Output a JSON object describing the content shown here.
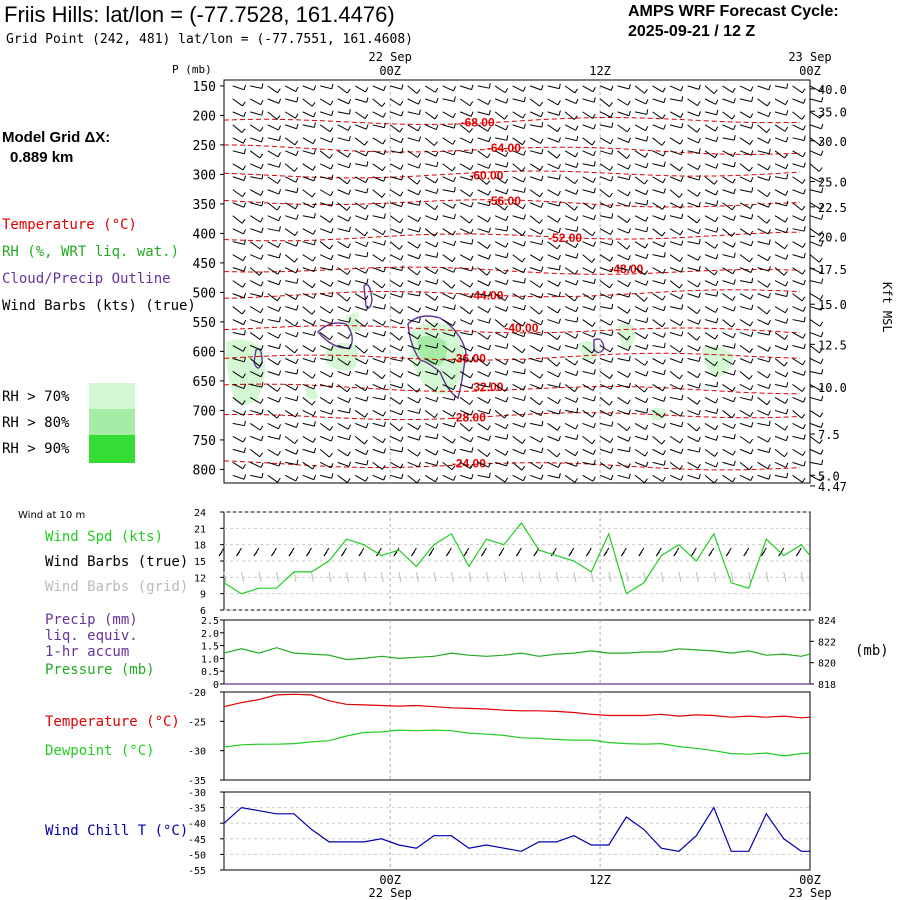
{
  "header": {
    "title": "Friis Hills:  lat/lon = (-77.7528, 161.4476)",
    "subtitle": "Grid Point (242, 481) lat/lon = (-77.7551, 161.4608)",
    "cycle_line1": "AMPS WRF Forecast Cycle:",
    "cycle_line2": "2025-09-21 / 12  Z",
    "grid_label": "Model Grid ΔX:",
    "grid_value": "0.889 km"
  },
  "colors": {
    "temperature": "#e00000",
    "rh": "#22aa22",
    "cloud": "#663399",
    "wind_spd": "#22cc22",
    "wind_grid": "#bbbbbb",
    "precip": "#663399",
    "pressure": "#22aa22",
    "dewpoint": "#22cc22",
    "windchill": "#0000aa",
    "rh70": "#d4f7d4",
    "rh80": "#a6eba6",
    "rh90": "#33dd33"
  },
  "legends": {
    "temperature": "Temperature (°C)",
    "rh": "RH (%, WRT liq. wat.)",
    "cloud": "Cloud/Precip Outline",
    "wind_barbs": "Wind Barbs (kts) (true)",
    "rh70": "RH > 70%",
    "rh80": "RH > 80%",
    "rh90": "RH > 90%",
    "wind_10m": "Wind at 10 m",
    "wind_spd": "Wind Spd (kts)",
    "wind_barbs_true": "Wind Barbs (true)",
    "wind_barbs_grid": "Wind Barbs (grid)",
    "precip1": "Precip (mm)",
    "precip2": "liq. equiv.",
    "precip3": "1-hr accum",
    "pressure": "Pressure (mb)",
    "pressure_unit": "(mb)",
    "temperature2": "Temperature (°C)",
    "dewpoint": "Dewpoint (°C)",
    "windchill": "Wind Chill T (°C)",
    "p_axis": "P (mb)",
    "kft_axis": "Kft MSL"
  },
  "time_axis": {
    "top_labels": [
      {
        "time": "22 Sep",
        "hour": "00Z",
        "t": 12
      },
      {
        "time": "",
        "hour": "12Z",
        "t": 24
      },
      {
        "time": "23 Sep",
        "hour": "00Z",
        "t": 36
      }
    ],
    "bottom_labels": [
      {
        "hour": "00Z",
        "date": "22 Sep",
        "t": 12
      },
      {
        "hour": "12Z",
        "date": "",
        "t": 24
      },
      {
        "hour": "00Z",
        "date": "23 Sep",
        "t": 36
      }
    ],
    "range": [
      2.5,
      36
    ]
  },
  "chart_data": [
    {
      "type": "contour",
      "title": "Vertical profile time-height section",
      "ylabel": "P (mb)",
      "y2label": "Kft MSL",
      "pressure_ticks": [
        "150",
        "200",
        "250",
        "300",
        "350",
        "400",
        "450",
        "500",
        "550",
        "600",
        "650",
        "700",
        "750",
        "800"
      ],
      "kft_ticks": [
        {
          "label": "40.0",
          "p": 155
        },
        {
          "label": "35.0",
          "p": 193
        },
        {
          "label": "30.0",
          "p": 243
        },
        {
          "label": "25.0",
          "p": 312
        },
        {
          "label": "22.5",
          "p": 355
        },
        {
          "label": "20.0",
          "p": 405
        },
        {
          "label": "17.5",
          "p": 460
        },
        {
          "label": "15.0",
          "p": 520
        },
        {
          "label": "12.5",
          "p": 588
        },
        {
          "label": "10.0",
          "p": 660
        },
        {
          "label": "7.5",
          "p": 740
        },
        {
          "label": "5.0",
          "p": 810
        },
        {
          "label": "4.47",
          "p": 828
        }
      ],
      "temperature_contours": [
        {
          "label": "-68.00",
          "p": 212,
          "t": 17.0
        },
        {
          "label": "-64.00",
          "p": 255,
          "t": 18.5
        },
        {
          "label": "-60.00",
          "p": 302,
          "t": 17.5
        },
        {
          "label": "-56.00",
          "p": 345,
          "t": 18.5
        },
        {
          "label": "-52.00",
          "p": 408,
          "t": 22.0
        },
        {
          "label": "-48.00",
          "p": 460,
          "t": 25.5
        },
        {
          "label": "-44.00",
          "p": 505,
          "t": 17.5
        },
        {
          "label": "-40.00",
          "p": 560,
          "t": 19.5
        },
        {
          "label": "-36.00",
          "p": 612,
          "t": 16.5
        },
        {
          "label": "-32.00",
          "p": 660,
          "t": 17.5
        },
        {
          "label": "-28.00",
          "p": 712,
          "t": 16.5
        },
        {
          "label": "-24.00",
          "p": 790,
          "t": 16.5
        }
      ]
    },
    {
      "type": "line",
      "title": "Wind at 10 m",
      "ylabel": "Wind Spd (kts)",
      "ylim": [
        6,
        24
      ],
      "yticks": [
        "24",
        "21",
        "18",
        "15",
        "12",
        "9",
        "6"
      ],
      "x": [
        2.5,
        3.5,
        4.5,
        5.5,
        6.5,
        7.5,
        8.5,
        9.5,
        10.5,
        11.5,
        12.5,
        13.5,
        14.5,
        15.5,
        16.5,
        17.5,
        18.5,
        19.5,
        20.5,
        21.5,
        22.5,
        23.5,
        24.5,
        25.5,
        26.5,
        27.5,
        28.5,
        29.5,
        30.5,
        31.5,
        32.5,
        33.5,
        34.5,
        35.5,
        36.0
      ],
      "series": [
        {
          "name": "Wind Spd (kts)",
          "values": [
            11,
            9,
            10,
            10,
            13,
            13,
            15,
            19,
            18,
            16,
            17,
            14,
            18,
            20,
            14,
            19,
            18,
            22,
            17,
            16,
            15,
            13,
            20,
            9,
            11,
            16,
            18,
            15,
            20,
            11,
            10,
            19,
            16,
            18,
            16
          ]
        }
      ]
    },
    {
      "type": "line",
      "title": "Precip and Pressure",
      "ylabel": "Precip (mm)",
      "y2label": "(mb)",
      "ylim": [
        0,
        2.5
      ],
      "yticks": [
        "2.5",
        "2.0",
        "1.5",
        "1.0",
        "0.5",
        "0"
      ],
      "y2lim": [
        818,
        824
      ],
      "y2ticks": [
        "824",
        "822",
        "820",
        "818"
      ],
      "series": [
        {
          "name": "Precip (mm)",
          "values": [
            0,
            0,
            0,
            0,
            0,
            0,
            0,
            0,
            0,
            0,
            0,
            0,
            0,
            0,
            0,
            0,
            0,
            0,
            0,
            0,
            0,
            0,
            0,
            0,
            0,
            0,
            0,
            0,
            0,
            0,
            0,
            0,
            0,
            0,
            0
          ]
        },
        {
          "name": "Pressure (mb)",
          "values": [
            820.9,
            821.3,
            820.9,
            821.4,
            820.9,
            820.8,
            820.7,
            820.3,
            820.4,
            820.6,
            820.4,
            820.5,
            820.6,
            820.9,
            820.7,
            820.6,
            820.7,
            820.9,
            820.6,
            820.8,
            820.9,
            821.1,
            820.9,
            820.9,
            821.0,
            821.0,
            821.3,
            821.2,
            821.1,
            820.9,
            821.1,
            820.7,
            820.8,
            820.6,
            820.8
          ]
        }
      ]
    },
    {
      "type": "line",
      "title": "Temperature and Dewpoint",
      "ylabel": "Temperature (°C)",
      "ylim": [
        -35,
        -20
      ],
      "yticks": [
        "-20",
        "-25",
        "-30",
        "-35"
      ],
      "series": [
        {
          "name": "Temperature (°C)",
          "values": [
            -22.5,
            -21.8,
            -21.3,
            -20.5,
            -20.4,
            -20.5,
            -21.5,
            -22.1,
            -22.2,
            -22.3,
            -22.4,
            -22.3,
            -22.5,
            -22.7,
            -22.8,
            -22.9,
            -23.1,
            -23.2,
            -23.2,
            -23.3,
            -23.5,
            -23.8,
            -24.0,
            -24.0,
            -24.0,
            -23.8,
            -24.1,
            -23.9,
            -24.0,
            -24.3,
            -24.1,
            -24.3,
            -24.1,
            -24.4,
            -24.3
          ]
        },
        {
          "name": "Dewpoint (°C)",
          "values": [
            -29.4,
            -29.0,
            -28.9,
            -28.9,
            -28.8,
            -28.5,
            -28.3,
            -27.5,
            -26.9,
            -26.8,
            -26.5,
            -26.6,
            -26.5,
            -26.6,
            -27.0,
            -27.2,
            -27.4,
            -27.8,
            -27.9,
            -28.1,
            -28.2,
            -28.2,
            -28.6,
            -28.8,
            -28.9,
            -28.8,
            -29.3,
            -29.6,
            -30.0,
            -30.5,
            -30.6,
            -30.4,
            -30.9,
            -30.5,
            -30.4
          ]
        }
      ]
    },
    {
      "type": "line",
      "title": "Wind Chill",
      "ylabel": "Wind Chill T (°C)",
      "ylim": [
        -55,
        -30
      ],
      "yticks": [
        "-30",
        "-35",
        "-40",
        "-45",
        "-50",
        "-55"
      ],
      "series": [
        {
          "name": "Wind Chill T (°C)",
          "values": [
            -40,
            -35,
            -36,
            -37,
            -37,
            -42,
            -46,
            -46,
            -46,
            -45,
            -47,
            -48,
            -44,
            -44,
            -48,
            -47,
            -48,
            -49,
            -46,
            -46,
            -44,
            -47,
            -47,
            -38,
            -42,
            -48,
            -49,
            -44,
            -35,
            -49,
            -49,
            -37,
            -45,
            -49,
            -49
          ]
        }
      ]
    }
  ]
}
